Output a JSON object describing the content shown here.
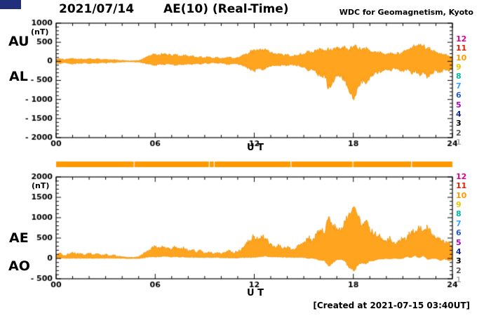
{
  "header": {
    "date": "2021/07/14",
    "title": "AE(10) (Real-Time)",
    "credit": "WDC for Geomagnetism, Kyoto"
  },
  "footer": {
    "created": "[Created at 2021-07-15 03:40UT]"
  },
  "panel_labels": {
    "top_upper": "AU",
    "top_lower": "AL",
    "bottom_upper": "AE",
    "bottom_lower": "AO"
  },
  "axis": {
    "x_label": "U T",
    "unit": "(nT)"
  },
  "colors": {
    "data_fill": "#ffa41e",
    "data_stroke": "#ef8e00",
    "frame": "#000000",
    "strip": "#ff9900",
    "corner": "#20307a"
  },
  "legend": {
    "items": [
      {
        "label": "12",
        "color": "#e8008c"
      },
      {
        "label": "11",
        "color": "#e82000"
      },
      {
        "label": "10",
        "color": "#ff9900"
      },
      {
        "label": "9",
        "color": "#e8c800"
      },
      {
        "label": "8",
        "color": "#00b89c"
      },
      {
        "label": "7",
        "color": "#38a0ff"
      },
      {
        "label": "6",
        "color": "#2858d8"
      },
      {
        "label": "5",
        "color": "#b000c0"
      },
      {
        "label": "4",
        "color": "#182c90"
      },
      {
        "label": "3",
        "color": "#000000"
      },
      {
        "label": "2",
        "color": "#585858"
      },
      {
        "label": "1",
        "color": "#b0b0b0"
      }
    ]
  },
  "chart_data": [
    {
      "type": "area",
      "name": "AU-AL panel",
      "xlabel": "U T",
      "ylabel": "(nT)",
      "x_range": [
        0,
        24
      ],
      "x_step": 0.25,
      "y_range": [
        -2000,
        1000
      ],
      "x_ticks": [
        0,
        6,
        12,
        18,
        24
      ],
      "x_tick_labels": [
        "00",
        "06",
        "12",
        "18",
        "24"
      ],
      "y_ticks": [
        1000,
        500,
        0,
        -500,
        -1000,
        -1500,
        -2000
      ],
      "y_tick_labels": [
        "1000",
        "500",
        "0",
        "- 500",
        "- 1000",
        "- 1500",
        "- 2000"
      ],
      "series": [
        {
          "name": "AU",
          "values": [
            50,
            70,
            40,
            60,
            80,
            55,
            65,
            45,
            70,
            50,
            60,
            40,
            55,
            35,
            45,
            30,
            25,
            15,
            10,
            15,
            20,
            60,
            120,
            150,
            180,
            160,
            200,
            170,
            150,
            180,
            140,
            160,
            120,
            140,
            100,
            120,
            90,
            110,
            80,
            100,
            70,
            90,
            110,
            80,
            100,
            150,
            200,
            250,
            300,
            260,
            320,
            280,
            220,
            180,
            200,
            150,
            170,
            130,
            150,
            180,
            200,
            250,
            220,
            280,
            300,
            260,
            320,
            280,
            350,
            300,
            380,
            320,
            400,
            350,
            300,
            320,
            280,
            240,
            260,
            220,
            200,
            230,
            190,
            210,
            250,
            300,
            350,
            400,
            380,
            420,
            350,
            300,
            250,
            200,
            180,
            150,
            120
          ]
        },
        {
          "name": "AL",
          "values": [
            -40,
            -60,
            -30,
            -50,
            -70,
            -45,
            -55,
            -35,
            -60,
            -40,
            -50,
            -30,
            -45,
            -25,
            -35,
            -20,
            -15,
            -10,
            -10,
            -15,
            -20,
            -40,
            -60,
            -80,
            -100,
            -70,
            -90,
            -60,
            -80,
            -100,
            -70,
            -90,
            -60,
            -80,
            -50,
            -70,
            -40,
            -60,
            -30,
            -50,
            -40,
            -60,
            -80,
            -50,
            -70,
            -100,
            -150,
            -200,
            -250,
            -180,
            -220,
            -160,
            -140,
            -100,
            -120,
            -90,
            -110,
            -80,
            -100,
            -130,
            -150,
            -250,
            -200,
            -300,
            -400,
            -350,
            -700,
            -500,
            -400,
            -350,
            -500,
            -800,
            -1000,
            -700,
            -500,
            -600,
            -400,
            -350,
            -300,
            -250,
            -200,
            -250,
            -180,
            -220,
            -250,
            -200,
            -300,
            -250,
            -350,
            -280,
            -400,
            -300,
            -250,
            -300,
            -200,
            -250,
            -180
          ]
        }
      ]
    },
    {
      "type": "area",
      "name": "AE-AO panel",
      "xlabel": "U T",
      "ylabel": "(nT)",
      "x_range": [
        0,
        24
      ],
      "x_step": 0.25,
      "y_range": [
        -500,
        2000
      ],
      "x_ticks": [
        0,
        6,
        12,
        18,
        24
      ],
      "x_tick_labels": [
        "00",
        "06",
        "12",
        "18",
        "24"
      ],
      "y_ticks": [
        2000,
        1500,
        1000,
        500,
        0,
        -500
      ],
      "y_tick_labels": [
        "2000",
        "1500",
        "1000",
        "500",
        "0",
        "- 500"
      ],
      "series": [
        {
          "name": "AE",
          "values": [
            90,
            130,
            70,
            110,
            150,
            100,
            120,
            80,
            130,
            90,
            110,
            70,
            100,
            60,
            80,
            50,
            40,
            25,
            20,
            30,
            40,
            100,
            180,
            230,
            280,
            230,
            290,
            230,
            230,
            280,
            210,
            250,
            180,
            220,
            150,
            190,
            130,
            170,
            110,
            150,
            110,
            150,
            190,
            130,
            170,
            250,
            350,
            450,
            550,
            440,
            540,
            440,
            360,
            280,
            320,
            240,
            280,
            210,
            250,
            310,
            350,
            500,
            420,
            580,
            700,
            610,
            1020,
            780,
            750,
            650,
            880,
            1120,
            1250,
            1050,
            800,
            920,
            680,
            590,
            560,
            470,
            400,
            480,
            370,
            430,
            500,
            500,
            650,
            650,
            730,
            700,
            750,
            600,
            500,
            500,
            380,
            400,
            300
          ]
        },
        {
          "name": "AO",
          "values": [
            10,
            5,
            5,
            5,
            5,
            5,
            5,
            5,
            5,
            5,
            5,
            5,
            5,
            5,
            5,
            5,
            5,
            0,
            0,
            0,
            0,
            10,
            30,
            35,
            40,
            45,
            55,
            55,
            35,
            40,
            35,
            35,
            30,
            30,
            25,
            25,
            25,
            25,
            25,
            25,
            15,
            15,
            15,
            15,
            15,
            25,
            25,
            25,
            25,
            40,
            50,
            60,
            40,
            40,
            40,
            30,
            30,
            25,
            25,
            25,
            25,
            0,
            10,
            -10,
            -50,
            -45,
            -190,
            -110,
            -25,
            -25,
            -60,
            -240,
            -300,
            -175,
            -100,
            -140,
            -60,
            -55,
            -20,
            -15,
            0,
            -10,
            5,
            -5,
            0,
            50,
            25,
            75,
            15,
            70,
            -25,
            0,
            0,
            -50,
            -10,
            -50,
            -30
          ]
        }
      ]
    },
    {
      "type": "availability-bar",
      "name": "station-count-strip",
      "color": "#ff9900",
      "gaps_hours": [
        4.7,
        9.25,
        9.55,
        14.2,
        17.95,
        21.5
      ]
    }
  ]
}
